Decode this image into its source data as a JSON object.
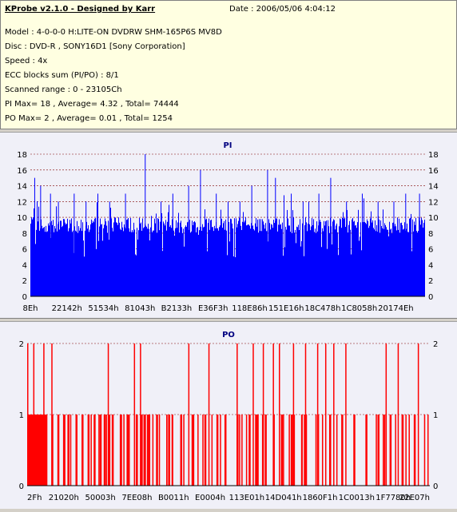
{
  "header": {
    "app_title": "KProbe v2.1.0 - Designed by Karr",
    "date": "Date : 2006/05/06 4:04:12",
    "lines": [
      "Model : 4-0-0-0 H:LITE-ON DVDRW SHM-165P6S MV8D",
      "Disc : DVD-R , SONY16D1 [Sony Corporation]",
      "Speed : 4x",
      "ECC blocks sum (PI/PO) : 8/1",
      "Scanned range : 0 - 23105Ch",
      "PI Max= 18 , Average= 4.32 , Total= 74444",
      "PO Max= 2 , Average= 0.01 , Total= 1254"
    ]
  },
  "colors": {
    "pi": "#0000ff",
    "po": "#ff0000",
    "plot_bg": "#f0f0f8",
    "title": "#000080"
  },
  "chart_data": [
    {
      "type": "bar",
      "title": "PI",
      "ylim": [
        0,
        18
      ],
      "yticks": [
        0,
        2,
        4,
        6,
        8,
        10,
        12,
        14,
        16,
        18
      ],
      "xticks": [
        "8Eh",
        "22142h",
        "51534h",
        "81043h",
        "B2133h",
        "E36F3h",
        "118E86h",
        "151E16h",
        "18C478h",
        "1C8058h",
        "20174Eh"
      ],
      "grid": true,
      "base_level": 9,
      "spikes": [
        {
          "x": 0.01,
          "y": 15
        },
        {
          "x": 0.025,
          "y": 14
        },
        {
          "x": 0.05,
          "y": 13
        },
        {
          "x": 0.07,
          "y": 12
        },
        {
          "x": 0.11,
          "y": 13
        },
        {
          "x": 0.14,
          "y": 12
        },
        {
          "x": 0.17,
          "y": 13
        },
        {
          "x": 0.2,
          "y": 12
        },
        {
          "x": 0.24,
          "y": 13
        },
        {
          "x": 0.29,
          "y": 18
        },
        {
          "x": 0.33,
          "y": 12
        },
        {
          "x": 0.36,
          "y": 13
        },
        {
          "x": 0.4,
          "y": 14
        },
        {
          "x": 0.43,
          "y": 16
        },
        {
          "x": 0.47,
          "y": 13
        },
        {
          "x": 0.5,
          "y": 12
        },
        {
          "x": 0.53,
          "y": 12
        },
        {
          "x": 0.56,
          "y": 14
        },
        {
          "x": 0.6,
          "y": 16
        },
        {
          "x": 0.62,
          "y": 15
        },
        {
          "x": 0.66,
          "y": 13
        },
        {
          "x": 0.69,
          "y": 12
        },
        {
          "x": 0.73,
          "y": 13
        },
        {
          "x": 0.76,
          "y": 15
        },
        {
          "x": 0.8,
          "y": 12
        },
        {
          "x": 0.84,
          "y": 13
        },
        {
          "x": 0.88,
          "y": 12
        },
        {
          "x": 0.92,
          "y": 12
        },
        {
          "x": 0.95,
          "y": 13
        },
        {
          "x": 0.985,
          "y": 13
        }
      ]
    },
    {
      "type": "bar",
      "title": "PO",
      "ylim": [
        0,
        2
      ],
      "yticks": [
        0,
        1,
        2
      ],
      "xticks": [
        "2Fh",
        "21020h",
        "50003h",
        "7EE08h",
        "B0011h",
        "E0004h",
        "113E01h",
        "14D041h",
        "1860F1h",
        "1C0013h",
        "1F7780h",
        "22E07h"
      ],
      "grid": true,
      "ones": [
        0.01,
        0.03,
        0.045,
        0.06,
        0.075,
        0.09,
        0.1,
        0.12,
        0.135,
        0.15,
        0.165,
        0.18,
        0.19,
        0.21,
        0.23,
        0.25,
        0.27,
        0.29,
        0.3,
        0.32,
        0.35,
        0.38,
        0.41,
        0.44,
        0.47,
        0.49,
        0.52,
        0.55,
        0.57,
        0.59,
        0.61,
        0.63,
        0.66,
        0.69,
        0.72,
        0.75,
        0.78,
        0.81,
        0.84,
        0.87,
        0.9,
        0.93,
        0.96
      ],
      "twos": [
        0.0,
        0.015,
        0.04,
        0.06,
        0.2,
        0.265,
        0.28,
        0.4,
        0.45,
        0.52,
        0.56,
        0.585,
        0.61,
        0.625,
        0.66,
        0.69,
        0.72,
        0.74,
        0.76,
        0.79,
        0.89,
        0.92,
        0.97
      ]
    }
  ]
}
